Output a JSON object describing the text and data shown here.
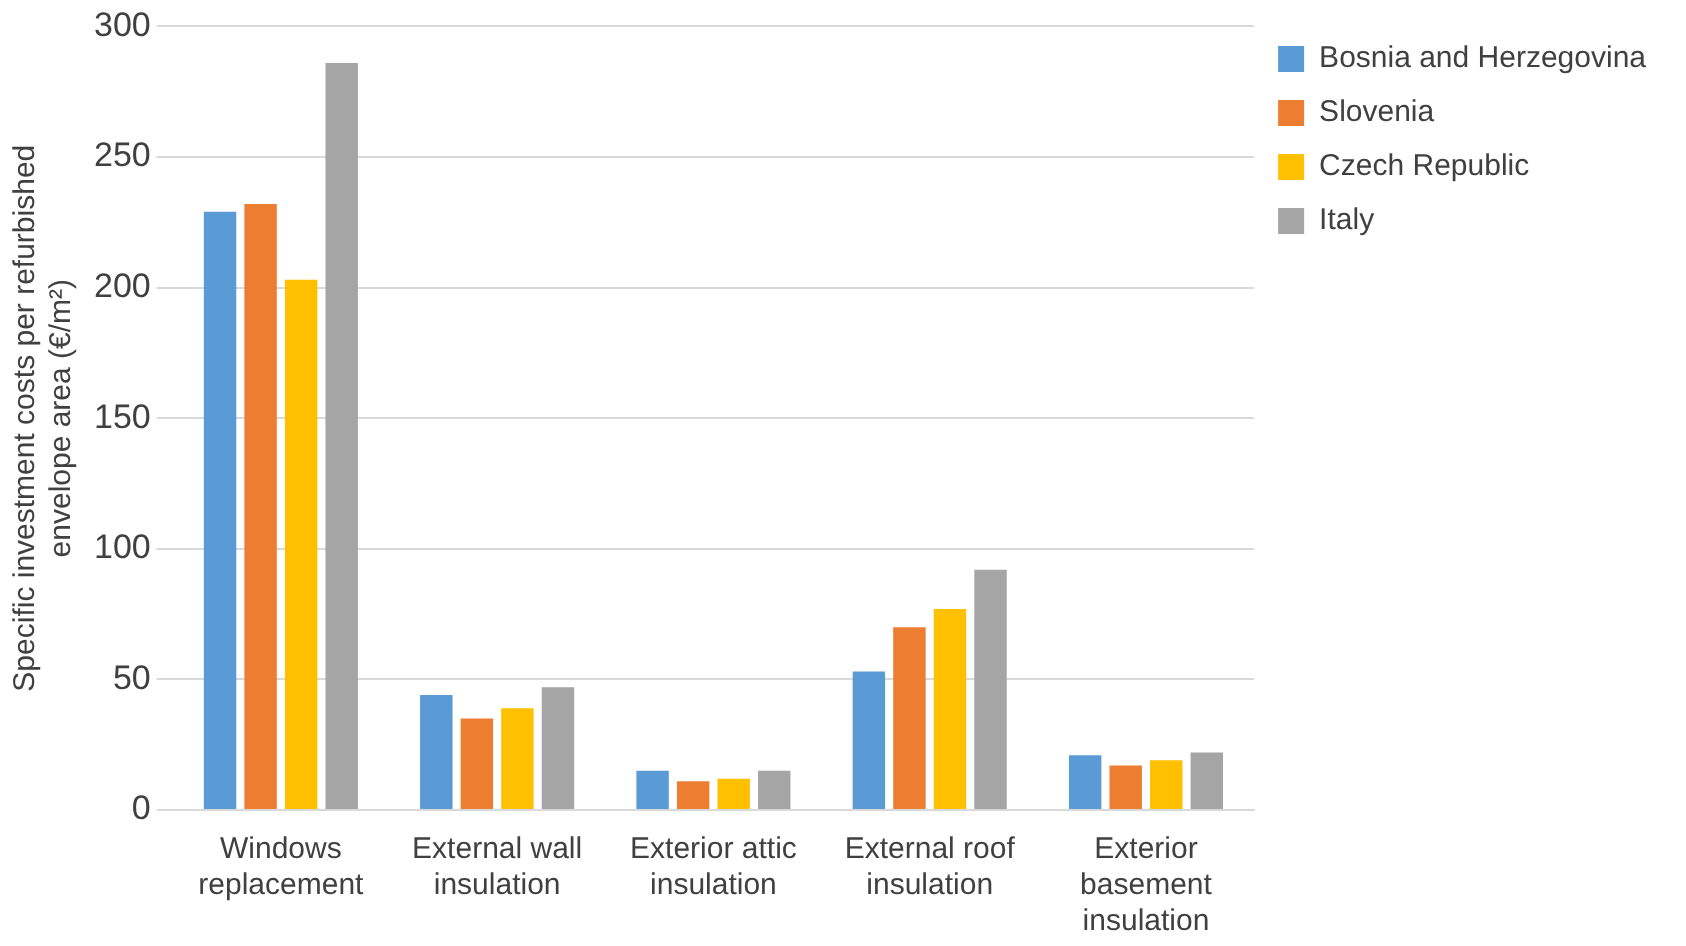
{
  "chart_data": {
    "type": "bar",
    "ylabel": "Specific investment costs per refurbished envelope area (€/m²)",
    "categories": [
      "Windows replacement",
      "External wall insulation",
      "Exterior attic insulation",
      "External roof insulation",
      "Exterior basement insulation"
    ],
    "series": [
      {
        "name": "Bosnia and Herzegovina",
        "color": "#5b9bd5",
        "values": [
          229,
          44,
          15,
          53,
          21
        ]
      },
      {
        "name": "Slovenia",
        "color": "#ed7d31",
        "values": [
          232,
          35,
          11,
          70,
          17
        ]
      },
      {
        "name": "Czech Republic",
        "color": "#ffc000",
        "values": [
          203,
          39,
          12,
          77,
          19
        ]
      },
      {
        "name": "Italy",
        "color": "#a5a5a5",
        "values": [
          286,
          47,
          15,
          92,
          22
        ]
      }
    ],
    "ylim": [
      0,
      300
    ],
    "yticks": [
      0,
      50,
      100,
      150,
      200,
      250,
      300
    ],
    "grid": "y",
    "legend": "top right"
  }
}
